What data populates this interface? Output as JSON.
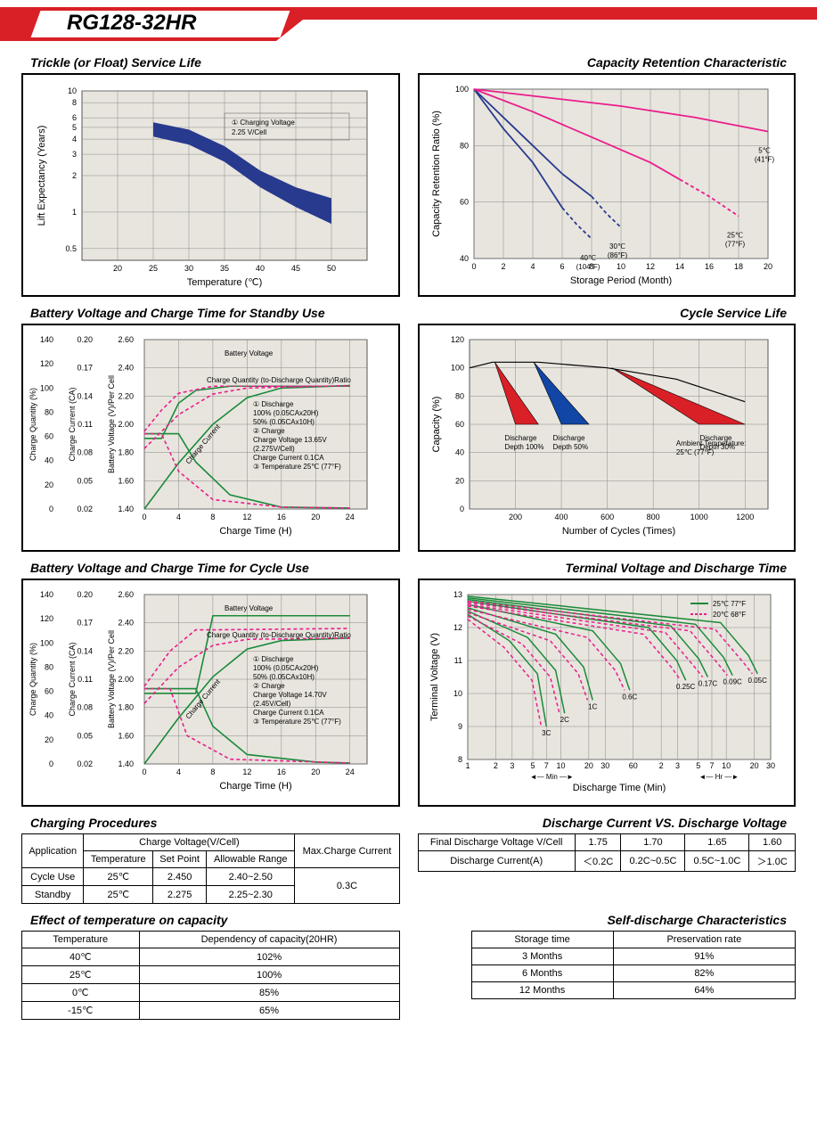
{
  "model": "RG128-32HR",
  "sections": {
    "trickle": {
      "title": "Trickle (or Float) Service Life",
      "xlabel": "Temperature (℃)",
      "ylabel": "Lift  Expectancy (Years)",
      "xlim": [
        15,
        55
      ],
      "xtick": [
        20,
        25,
        30,
        35,
        40,
        45,
        50
      ],
      "yticks": [
        0.5,
        1,
        2,
        3,
        4,
        5,
        6,
        8,
        10
      ],
      "band_upper": [
        [
          25,
          5.5
        ],
        [
          30,
          4.8
        ],
        [
          35,
          3.5
        ],
        [
          40,
          2.2
        ],
        [
          45,
          1.6
        ],
        [
          50,
          1.3
        ]
      ],
      "band_lower": [
        [
          25,
          4.2
        ],
        [
          30,
          3.6
        ],
        [
          35,
          2.6
        ],
        [
          40,
          1.6
        ],
        [
          45,
          1.1
        ],
        [
          50,
          0.8
        ]
      ],
      "band_color": "#283a8e",
      "note": "① Charging Voltage\n    2.25 V/Cell",
      "bg": "#e8e5de"
    },
    "capacity_retention": {
      "title": "Capacity Retention Characteristic",
      "xlabel": "Storage Period (Month)",
      "ylabel": "Capacity Retention Ratio (%)",
      "xlim": [
        0,
        20
      ],
      "xtick_step": 2,
      "ylim": [
        40,
        100
      ],
      "ytick_step": 20,
      "curves": [
        {
          "label": "40℃\n(104°F)",
          "color": "#283a8e",
          "dash": false,
          "pts": [
            [
              0,
              100
            ],
            [
              2,
              86
            ],
            [
              4,
              74
            ],
            [
              5,
              66
            ],
            [
              6,
              58
            ]
          ],
          "dash_ext": [
            [
              6,
              58
            ],
            [
              7,
              52
            ],
            [
              8,
              47
            ]
          ]
        },
        {
          "label": "30℃\n(86°F)",
          "color": "#283a8e",
          "dash": false,
          "pts": [
            [
              0,
              100
            ],
            [
              2,
              90
            ],
            [
              4,
              80
            ],
            [
              6,
              70
            ],
            [
              8,
              62
            ]
          ],
          "dash_ext": [
            [
              8,
              62
            ],
            [
              9,
              56
            ],
            [
              10,
              51
            ]
          ]
        },
        {
          "label": "25℃\n(77°F)",
          "color": "#e91e8c",
          "dash": false,
          "pts": [
            [
              0,
              100
            ],
            [
              4,
              92
            ],
            [
              8,
              83
            ],
            [
              12,
              74
            ],
            [
              14,
              68
            ]
          ],
          "dash_ext": [
            [
              14,
              68
            ],
            [
              16,
              62
            ],
            [
              18,
              55
            ]
          ]
        },
        {
          "label": "5℃\n(41°F)",
          "color": "#e91e8c",
          "dash": false,
          "pts": [
            [
              0,
              100
            ],
            [
              5,
              97
            ],
            [
              10,
              94
            ],
            [
              15,
              90
            ],
            [
              20,
              85
            ]
          ],
          "dash_ext": []
        }
      ],
      "bg": "#e8e5de"
    },
    "standby_charge": {
      "title": "Battery Voltage and Charge Time for Standby Use",
      "xlabel": "Charge Time (H)",
      "y1": "Charge Quantity (%)",
      "y1_ticks": [
        0,
        20,
        40,
        60,
        80,
        100,
        120,
        140
      ],
      "y2": "Charge Current (CA)",
      "y2_ticks": [
        0.02,
        0.05,
        0.08,
        0.11,
        0.14,
        0.17,
        0.2
      ],
      "y3": "Battery Voltage (V)/Per Cell",
      "y3_ticks": [
        1.4,
        1.6,
        1.8,
        2.0,
        2.2,
        2.4,
        2.6
      ],
      "xlim": [
        0,
        26
      ],
      "xtick_step": 4,
      "curves": {
        "voltage_100": {
          "color": "#1b8a3a",
          "dash": false,
          "pts": [
            [
              0,
              1.9
            ],
            [
              2,
              1.9
            ],
            [
              4,
              2.15
            ],
            [
              6,
              2.24
            ],
            [
              10,
              2.27
            ],
            [
              16,
              2.27
            ],
            [
              24,
              2.27
            ]
          ]
        },
        "voltage_50": {
          "color": "#e91e8c",
          "dash": true,
          "pts": [
            [
              0,
              1.95
            ],
            [
              2,
              2.1
            ],
            [
              4,
              2.22
            ],
            [
              8,
              2.27
            ],
            [
              24,
              2.27
            ]
          ]
        },
        "quantity_100": {
          "color": "#1b8a3a",
          "dash": false,
          "pts": [
            [
              0,
              0
            ],
            [
              4,
              38
            ],
            [
              8,
              70
            ],
            [
              12,
              92
            ],
            [
              16,
              100
            ],
            [
              24,
              102
            ]
          ]
        },
        "quantity_50": {
          "color": "#e91e8c",
          "dash": true,
          "pts": [
            [
              0,
              50
            ],
            [
              4,
              78
            ],
            [
              8,
              95
            ],
            [
              12,
              100
            ],
            [
              24,
              102
            ]
          ]
        },
        "current_100": {
          "color": "#1b8a3a",
          "dash": false,
          "pts": [
            [
              0,
              0.1
            ],
            [
              4,
              0.1
            ],
            [
              6,
              0.07
            ],
            [
              10,
              0.035
            ],
            [
              16,
              0.022
            ],
            [
              24,
              0.021
            ]
          ]
        },
        "current_50": {
          "color": "#e91e8c",
          "dash": true,
          "pts": [
            [
              0,
              0.1
            ],
            [
              2,
              0.1
            ],
            [
              4,
              0.06
            ],
            [
              8,
              0.03
            ],
            [
              16,
              0.022
            ],
            [
              24,
              0.021
            ]
          ]
        }
      },
      "notes": [
        "Battery Voltage",
        "Charge Quantity (to-Discharge Quantity)Ratio",
        "① Discharge",
        "    100% (0.05CAx20H)",
        "    50% (0.05CAx10H)",
        "② Charge",
        "Charge Voltage 13.65V",
        "(2.275V/Cell)",
        "Charge Current 0.1CA",
        "③ Temperature 25℃ (77°F)",
        "Charge Current"
      ],
      "bg": "#e8e5de"
    },
    "cycle_life": {
      "title": "Cycle Service Life",
      "xlabel": "Number of Cycles (Times)",
      "ylabel": "Capacity (%)",
      "xlim": [
        0,
        1300
      ],
      "xtick": [
        200,
        400,
        600,
        800,
        1000,
        1200
      ],
      "ylim": [
        0,
        120
      ],
      "ytick_step": 20,
      "envelope": {
        "color": "#000",
        "pts": [
          [
            0,
            100
          ],
          [
            100,
            104
          ],
          [
            300,
            104
          ],
          [
            600,
            100
          ],
          [
            900,
            92
          ],
          [
            1200,
            76
          ]
        ]
      },
      "wedges": [
        {
          "label": "Discharge\nDepth 100%",
          "color": "#d92027",
          "tip": [
            110,
            104
          ],
          "baseL": [
            200,
            60
          ],
          "baseR": [
            300,
            60
          ]
        },
        {
          "label": "Discharge\nDepth 50%",
          "color": "#1246a6",
          "tip": [
            280,
            104
          ],
          "baseL": [
            400,
            60
          ],
          "baseR": [
            520,
            60
          ]
        },
        {
          "label": "Discharge\nDepth 30%",
          "color": "#d92027",
          "tip": [
            620,
            100
          ],
          "baseL": [
            1000,
            60
          ],
          "baseR": [
            1200,
            60
          ]
        }
      ],
      "ambient": "Ambient Temperature:\n25℃ (77°F)",
      "bg": "#e8e5de"
    },
    "cycle_charge": {
      "title": "Battery Voltage and Charge Time for Cycle Use",
      "xlabel": "Charge Time (H)",
      "notes": [
        "Battery Voltage",
        "Charge Quantity (to-Discharge Quantity)Ratio",
        "① Discharge",
        "    100% (0.05CAx20H)",
        "    50% (0.05CAx10H)",
        "② Charge",
        "Charge Voltage 14.70V",
        "(2.45V/Cell)",
        "Charge Current 0.1CA",
        "③ Temperature 25℃ (77°F)",
        "Charge Current"
      ],
      "bg": "#e8e5de"
    },
    "terminal_voltage": {
      "title": "Terminal Voltage and Discharge Time",
      "xlabel": "Discharge Time (Min)",
      "ylabel": "Terminal Voltage (V)",
      "ylim": [
        8,
        13
      ],
      "ytick_step": 1,
      "temps": [
        {
          "label": "25℃ 77°F",
          "color": "#1b8a3a"
        },
        {
          "label": "20℃ 68°F",
          "color": "#e91e8c"
        }
      ],
      "rates": [
        "3C",
        "2C",
        "1C",
        "0.6C",
        "0.25C",
        "0.17C",
        "0.09C",
        "0.05C"
      ],
      "sections_x": [
        "1",
        "2",
        "3",
        "5",
        "7",
        "10",
        "20",
        "30",
        "60",
        "2",
        "3",
        "5",
        "7",
        "10",
        "20",
        "30"
      ],
      "section_labels": [
        "Min",
        "Hr"
      ],
      "bg": "#e8e5de"
    },
    "charging_procedures": {
      "title": "Charging Procedures",
      "header": [
        "Application",
        "Charge Voltage(V/Cell)",
        "Max.Charge Current"
      ],
      "sub": [
        "Temperature",
        "Set Point",
        "Allowable Range"
      ],
      "rows": [
        [
          "Cycle Use",
          "25℃",
          "2.450",
          "2.40~2.50",
          "0.3C"
        ],
        [
          "Standby",
          "25℃",
          "2.275",
          "2.25~2.30",
          ""
        ]
      ]
    },
    "discharge_vs_voltage": {
      "title": "Discharge Current VS. Discharge Voltage",
      "rows": [
        [
          "Final Discharge Voltage V/Cell",
          "1.75",
          "1.70",
          "1.65",
          "1.60"
        ],
        [
          "Discharge Current(A)",
          "＜0.2C",
          "0.2C~0.5C",
          "0.5C~1.0C",
          "＞1.0C"
        ]
      ]
    },
    "temp_capacity": {
      "title": "Effect of temperature on capacity",
      "header": [
        "Temperature",
        "Dependency of capacity(20HR)"
      ],
      "rows": [
        [
          "40℃",
          "102%"
        ],
        [
          "25℃",
          "100%"
        ],
        [
          "0℃",
          "85%"
        ],
        [
          "-15℃",
          "65%"
        ]
      ]
    },
    "self_discharge": {
      "title": "Self-discharge Characteristics",
      "header": [
        "Storage time",
        "Preservation rate"
      ],
      "rows": [
        [
          "3 Months",
          "91%"
        ],
        [
          "6 Months",
          "82%"
        ],
        [
          "12 Months",
          "64%"
        ]
      ]
    }
  }
}
